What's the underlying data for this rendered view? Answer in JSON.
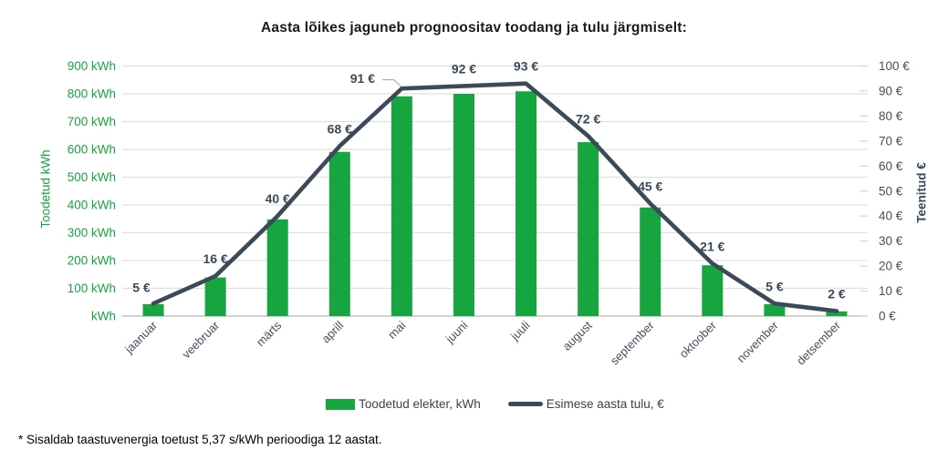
{
  "title": "Aasta lõikes jaguneb prognoositav toodang ja tulu järgmiselt:",
  "footnote": "* Sisaldab taastuvenergia toetust 5,37 s/kWh perioodiga 12 aastat.",
  "colors": {
    "bar_green": "#17A540",
    "line_dark": "#3B4A59",
    "slate_text": "#44505E",
    "grid": "#E0E0E0",
    "axis_line": "#C4C4C4",
    "right_tick": "#D6D6D6",
    "callout": "#B0B0B0",
    "title_text": "#1A1A1A",
    "legend_text": "#3F3F3F"
  },
  "legend": [
    {
      "label": "Toodetud elekter, kWh",
      "swatch": "bar"
    },
    {
      "label": "Esimese aasta tulu, €",
      "swatch": "line"
    }
  ],
  "chart_data": {
    "type": "bar",
    "title": "Aasta lõikes jaguneb prognoositav toodang ja tulu järgmiselt:",
    "categories": [
      "jaanuar",
      "veebruar",
      "märts",
      "aprill",
      "mai",
      "juuni",
      "juuli",
      "august",
      "september",
      "oktoober",
      "november",
      "detsember"
    ],
    "series": [
      {
        "name": "Toodetud elekter, kWh",
        "type": "bar",
        "axis": "left",
        "unit": "kWh",
        "values": [
          43,
          139,
          348,
          591,
          791,
          800,
          809,
          626,
          391,
          183,
          43,
          17
        ]
      },
      {
        "name": "Esimese aasta tulu, €",
        "type": "line",
        "axis": "right",
        "unit": "€",
        "values": [
          5,
          16,
          40,
          68,
          91,
          92,
          93,
          72,
          45,
          21,
          5,
          2
        ],
        "labels": [
          "5 €",
          "16 €",
          "40 €",
          "68 €",
          "91 €",
          "92 €",
          "93 €",
          "72 €",
          "45 €",
          "21 €",
          "5 €",
          "2 €"
        ]
      }
    ],
    "left_axis": {
      "title": "Toodetud kWh",
      "max": 900,
      "min": 0,
      "step": 100,
      "ticks": [
        "900 kWh",
        "800 kWh",
        "700 kWh",
        "600 kWh",
        "500 kWh",
        "400 kWh",
        "300 kWh",
        "200 kWh",
        "100 kWh",
        "kWh"
      ]
    },
    "right_axis": {
      "title": "Teenitud €",
      "max": 100,
      "min": 0,
      "step": 10,
      "ticks": [
        "100 €",
        "90 €",
        "80 €",
        "70 €",
        "60 €",
        "50 €",
        "40 €",
        "30 €",
        "20 €",
        "10 €",
        "0 €"
      ]
    },
    "grid": true,
    "legend_position": "bottom",
    "x_label_rotation": -45
  }
}
